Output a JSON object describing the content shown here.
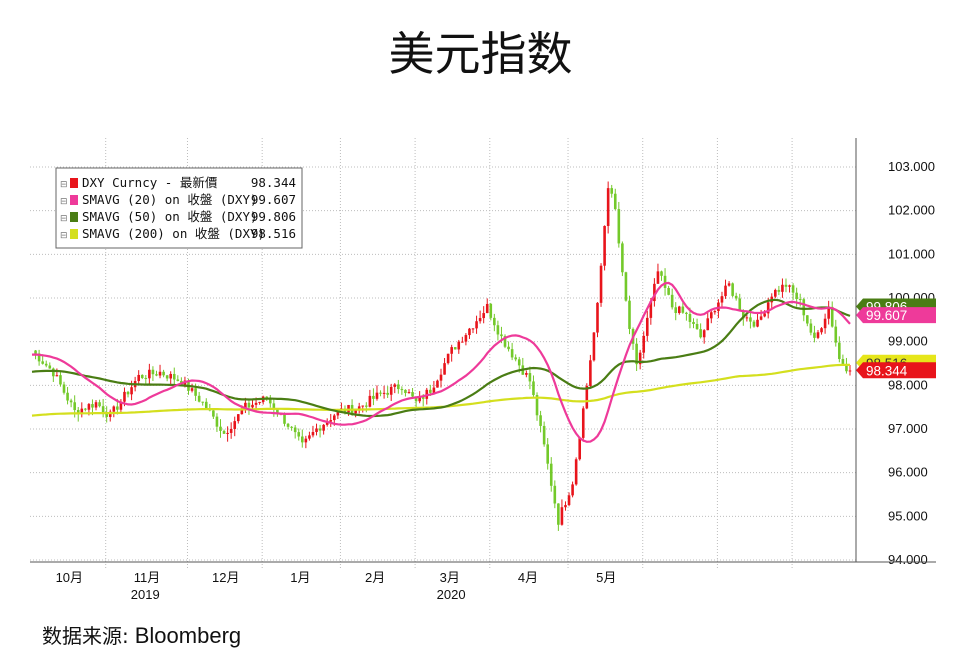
{
  "title": "美元指数",
  "source": {
    "label": "数据来源:",
    "name": "Bloomberg"
  },
  "chart_data": {
    "type": "candlestick",
    "ylim": [
      94.0,
      103.5
    ],
    "yticks": [
      "94.000",
      "95.000",
      "96.000",
      "97.000",
      "98.000",
      "99.000",
      "100.000",
      "101.000",
      "102.000",
      "103.000"
    ],
    "month_labels": [
      "10月",
      "11月",
      "12月",
      "1月",
      "2月",
      "3月",
      "4月",
      "5月"
    ],
    "year_labels": [
      "2019",
      "2020"
    ],
    "grid": true,
    "legend_position": "top-left",
    "legend": [
      {
        "name": "DXY Curncy - 最新價",
        "value": "98.344",
        "color": "#e8141b"
      },
      {
        "name": "SMAVG (20) on 收盤 (DXY)",
        "value": "99.607",
        "color": "#ee3a9a"
      },
      {
        "name": "SMAVG (50) on 收盤 (DXY)",
        "value": "99.806",
        "color": "#4a7d14"
      },
      {
        "name": "SMAVG (200) on 收盤 (DXY)",
        "value": "98.516",
        "color": "#d4df1e"
      }
    ],
    "last_tags": [
      {
        "value": "99.806",
        "color": "#4a7d14",
        "text_color": "#ffffff"
      },
      {
        "value": "99.607",
        "color": "#ee3a9a",
        "text_color": "#ffffff"
      },
      {
        "value": "98.516",
        "color": "#e6e61a",
        "text_color": "#333333"
      },
      {
        "value": "98.344",
        "color": "#e8141b",
        "text_color": "#ffffff"
      }
    ],
    "colors": {
      "up": "#e8141b",
      "down": "#73c92a"
    },
    "price_anchors": [
      [
        0,
        98.8
      ],
      [
        6,
        98.3
      ],
      [
        12,
        97.4
      ],
      [
        18,
        97.6
      ],
      [
        22,
        97.3
      ],
      [
        30,
        98.2
      ],
      [
        36,
        98.3
      ],
      [
        42,
        98.1
      ],
      [
        48,
        97.6
      ],
      [
        54,
        96.9
      ],
      [
        60,
        97.5
      ],
      [
        66,
        97.7
      ],
      [
        72,
        97.1
      ],
      [
        76,
        96.6
      ],
      [
        80,
        97.0
      ],
      [
        86,
        97.4
      ],
      [
        92,
        97.5
      ],
      [
        98,
        97.8
      ],
      [
        104,
        98.0
      ],
      [
        108,
        97.6
      ],
      [
        112,
        97.9
      ],
      [
        118,
        98.8
      ],
      [
        124,
        99.4
      ],
      [
        128,
        99.8
      ],
      [
        132,
        99.1
      ],
      [
        136,
        98.6
      ],
      [
        140,
        98.1
      ],
      [
        144,
        96.6
      ],
      [
        148,
        94.9
      ],
      [
        152,
        95.8
      ],
      [
        156,
        98.0
      ],
      [
        159,
        99.8
      ],
      [
        162,
        102.6
      ],
      [
        164,
        102.0
      ],
      [
        166,
        100.5
      ],
      [
        168,
        99.3
      ],
      [
        170,
        98.4
      ],
      [
        173,
        99.5
      ],
      [
        176,
        100.6
      ],
      [
        180,
        99.8
      ],
      [
        184,
        99.6
      ],
      [
        188,
        99.1
      ],
      [
        192,
        99.8
      ],
      [
        196,
        100.3
      ],
      [
        200,
        99.6
      ],
      [
        204,
        99.4
      ],
      [
        208,
        100.1
      ],
      [
        212,
        100.3
      ],
      [
        216,
        99.9
      ],
      [
        220,
        99.0
      ],
      [
        224,
        99.8
      ],
      [
        227,
        98.6
      ],
      [
        230,
        98.34
      ]
    ]
  }
}
